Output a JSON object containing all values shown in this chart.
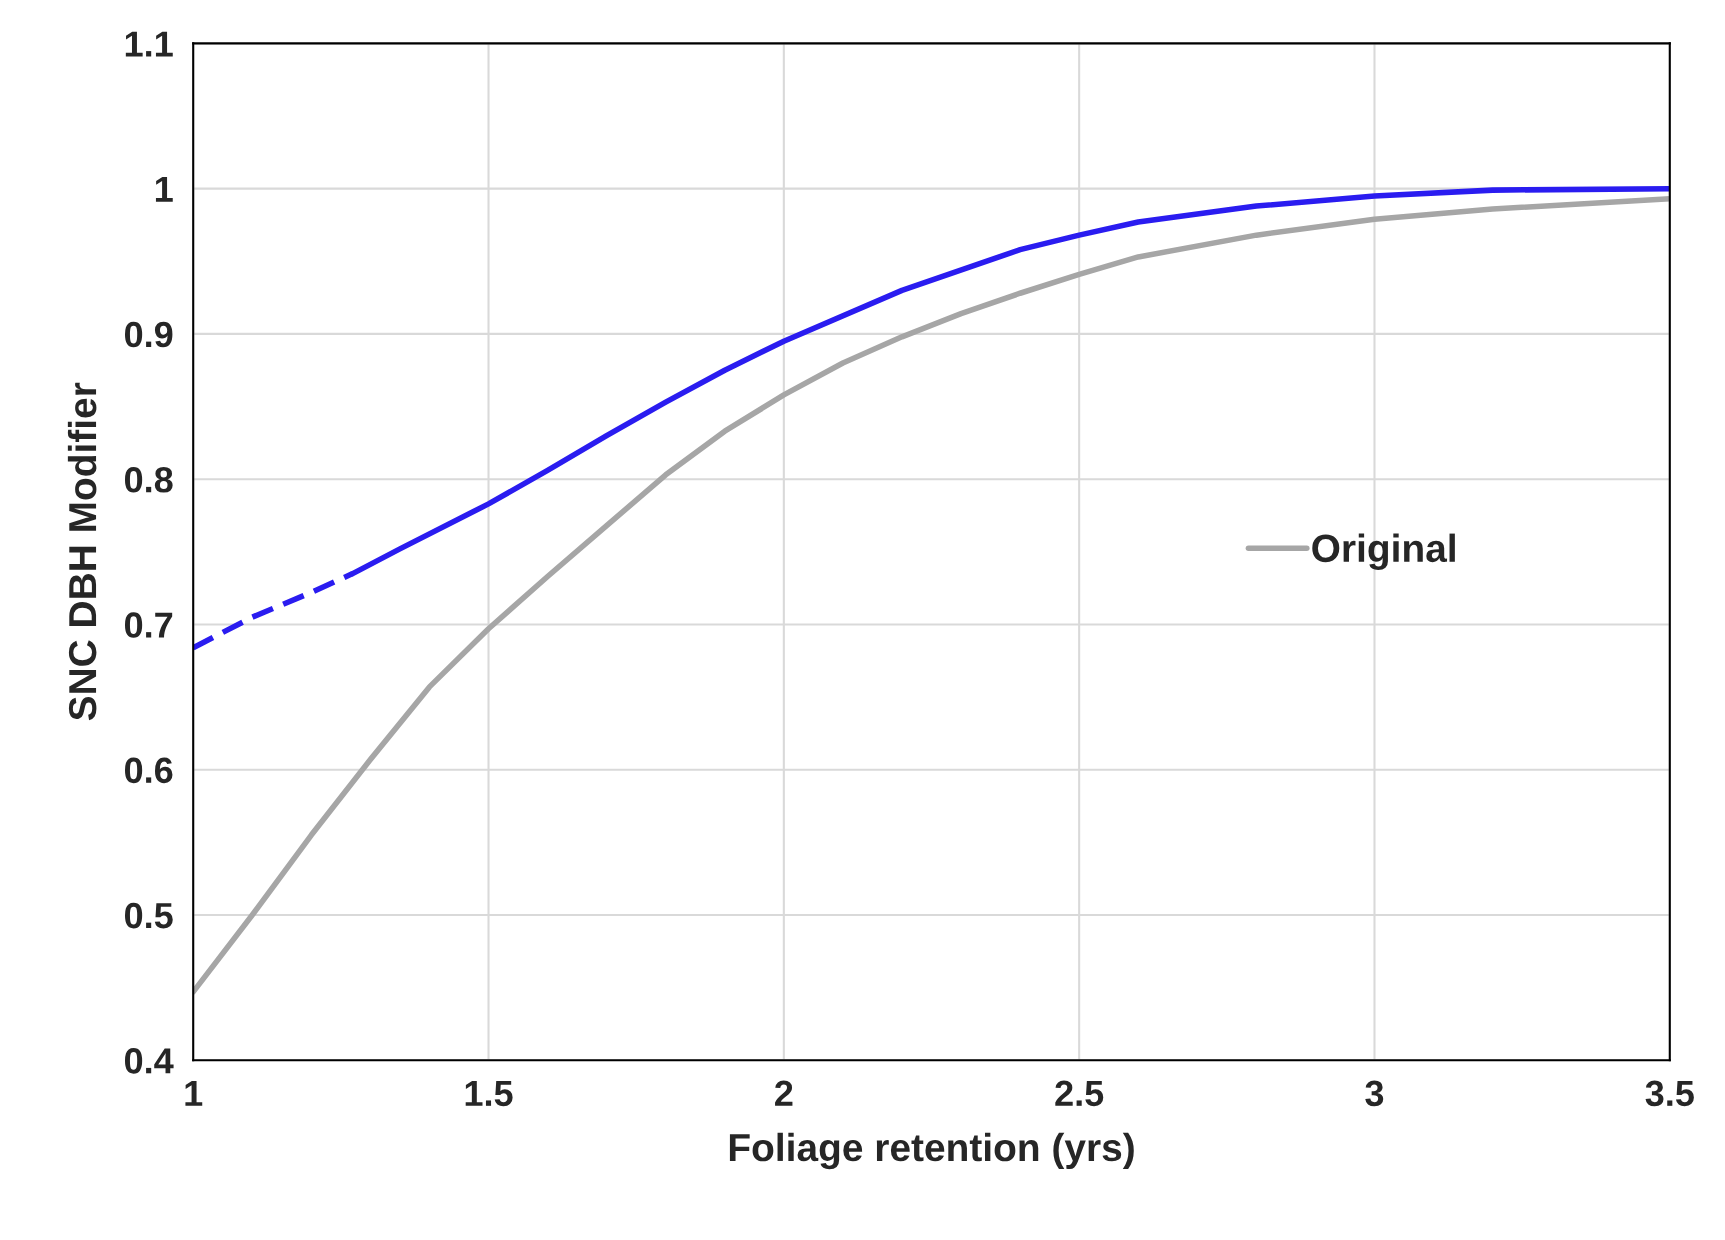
{
  "chart_data": {
    "type": "line",
    "xlabel": "Foliage retention (yrs)",
    "ylabel": "SNC DBH Modifier",
    "xlim": [
      1,
      3.5
    ],
    "xticks": [
      1,
      1.5,
      2,
      2.5,
      3,
      3.5
    ],
    "ylim": [
      0.4,
      1.1
    ],
    "yticks": [
      0.4,
      0.5,
      0.6,
      0.7,
      0.8,
      0.9,
      1,
      1.1
    ],
    "grid": true,
    "legend": "right",
    "series": [
      {
        "color": "#2a1cf0",
        "line_style": "dashed",
        "x": [
          1,
          1.1,
          1.2,
          1.27
        ],
        "values": [
          0.684,
          0.705,
          0.722,
          0.735
        ]
      },
      {
        "color": "#2a1cf0",
        "line_style": "solid",
        "x": [
          1.27,
          1.35,
          1.5,
          1.6,
          1.7,
          1.8,
          1.9,
          2.0,
          2.2,
          2.4,
          2.5,
          2.6,
          2.8,
          3.0,
          3.2,
          3.5
        ],
        "values": [
          0.735,
          0.752,
          0.783,
          0.806,
          0.83,
          0.853,
          0.875,
          0.895,
          0.93,
          0.958,
          0.968,
          0.977,
          0.988,
          0.995,
          0.999,
          1.0
        ]
      },
      {
        "name": "Original",
        "color": "#a6a6a6",
        "line_style": "solid",
        "x": [
          1.0,
          1.1,
          1.2,
          1.3,
          1.4,
          1.5,
          1.6,
          1.7,
          1.8,
          1.9,
          2.0,
          2.1,
          2.2,
          2.3,
          2.4,
          2.5,
          2.6,
          2.8,
          3.0,
          3.2,
          3.5
        ],
        "values": [
          0.447,
          0.5,
          0.555,
          0.607,
          0.657,
          0.697,
          0.733,
          0.768,
          0.803,
          0.833,
          0.858,
          0.88,
          0.898,
          0.914,
          0.928,
          0.941,
          0.953,
          0.968,
          0.979,
          0.986,
          0.993
        ]
      }
    ]
  }
}
